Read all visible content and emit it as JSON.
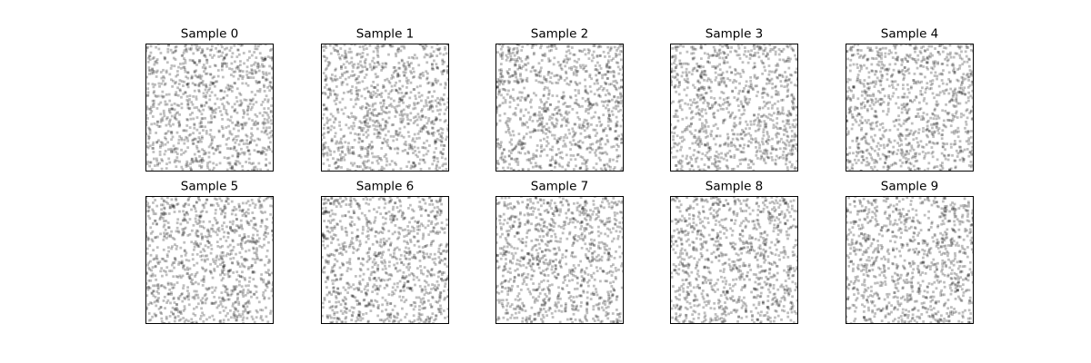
{
  "chart_data": {
    "type": "scatter",
    "grid": false,
    "axes_visible": false,
    "marker_color": "#000000",
    "marker_alpha": 0.25,
    "xlim": [
      0,
      1
    ],
    "ylim": [
      0,
      1
    ],
    "point_count_per_panel": 1000,
    "layout": {
      "rows": 2,
      "cols": 5
    },
    "panels": [
      {
        "title": "Sample 0",
        "seed": 0
      },
      {
        "title": "Sample 1",
        "seed": 1
      },
      {
        "title": "Sample 2",
        "seed": 2
      },
      {
        "title": "Sample 3",
        "seed": 3
      },
      {
        "title": "Sample 4",
        "seed": 4
      },
      {
        "title": "Sample 5",
        "seed": 5
      },
      {
        "title": "Sample 6",
        "seed": 6
      },
      {
        "title": "Sample 7",
        "seed": 7
      },
      {
        "title": "Sample 8",
        "seed": 8
      },
      {
        "title": "Sample 9",
        "seed": 9
      }
    ]
  }
}
